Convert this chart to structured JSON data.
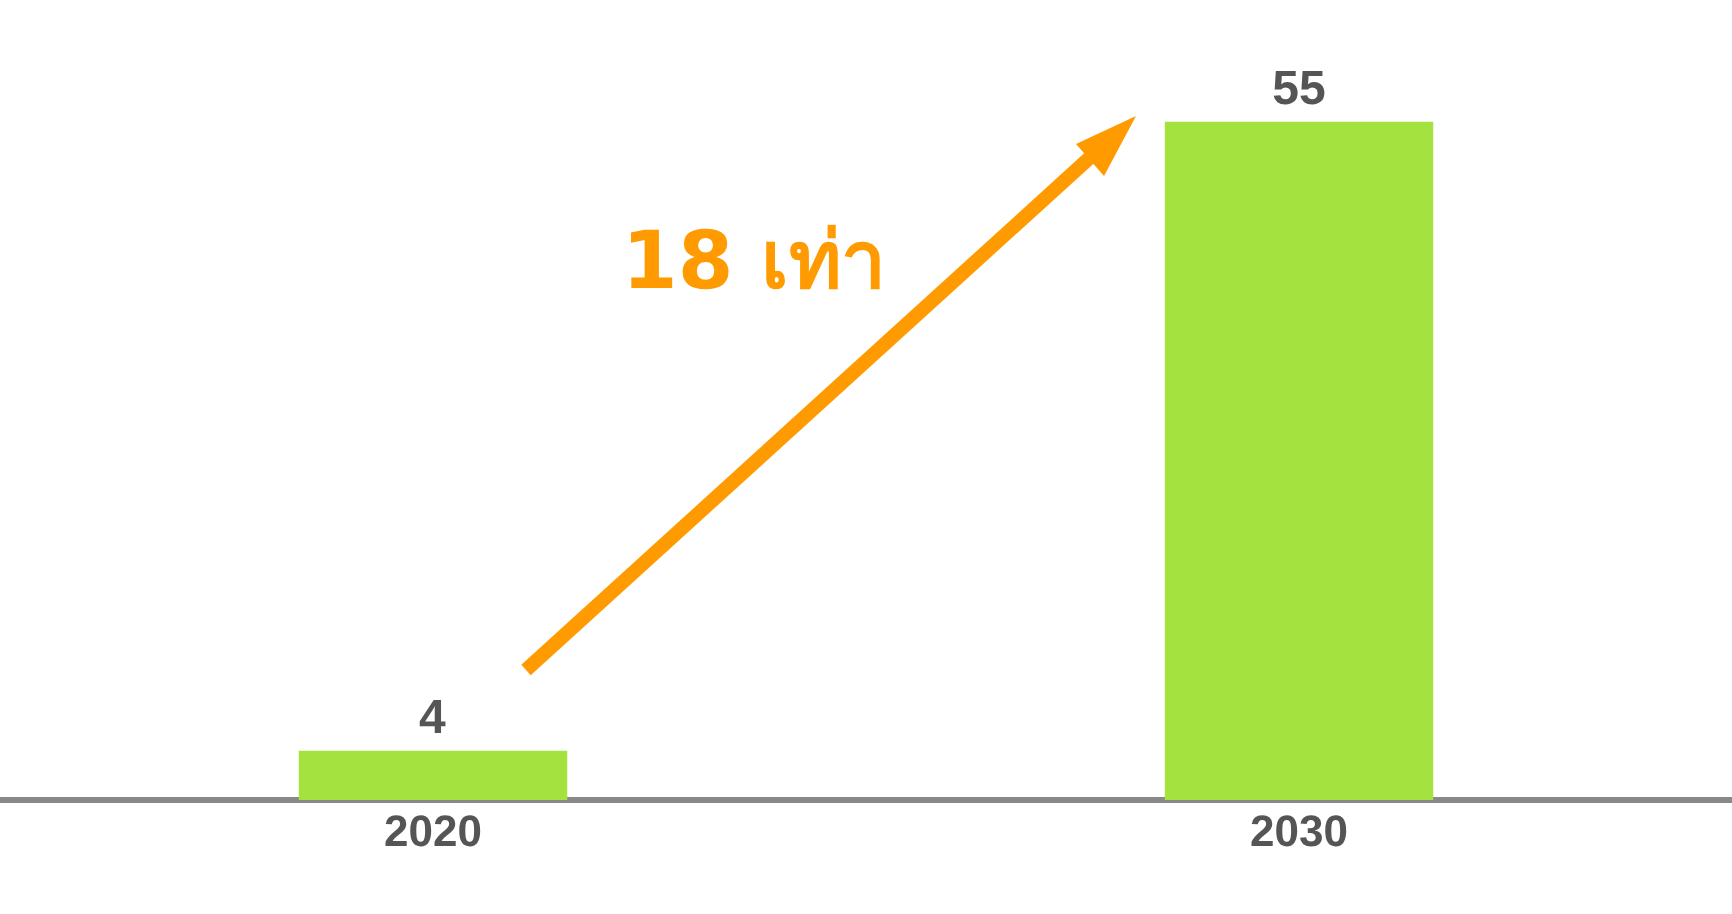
{
  "chart_data": {
    "type": "bar",
    "categories": [
      "2020",
      "2030"
    ],
    "values": [
      4,
      55
    ],
    "color": "#a4e33f",
    "data_labels": true,
    "grid": false,
    "annotations": [
      "18 เท่า"
    ]
  }
}
